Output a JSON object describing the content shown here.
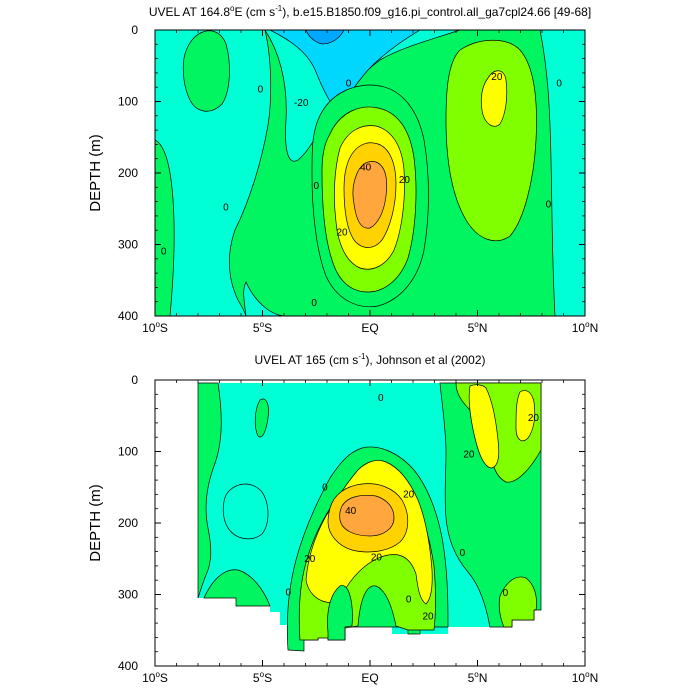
{
  "chart_data": [
    {
      "type": "contour",
      "title": "UVEL AT 164.8°E (cm s⁻¹), b.e15.B1850.f09_g16.pi_control.all_ga7cpl24.66 [49-68]",
      "title_parts": {
        "pre": "UVEL AT 164.8",
        "deg": "o",
        "mid": "E (cm s",
        "sup": "-1",
        "post": "), b.e15.B1850.f09_g16.pi_control.all_ga7cpl24.66 [49-68]"
      },
      "ylabel": "DEPTH (m)",
      "xlim": [
        -10,
        10
      ],
      "ylim": [
        0,
        400
      ],
      "y_inverted": true,
      "xticks": [
        {
          "value": -10,
          "label": "10",
          "deg": "o",
          "suffix": "S"
        },
        {
          "value": -5,
          "label": "5",
          "deg": "o",
          "suffix": "S"
        },
        {
          "value": 0,
          "label": "EQ",
          "deg": "",
          "suffix": ""
        },
        {
          "value": 5,
          "label": "5",
          "deg": "o",
          "suffix": "N"
        },
        {
          "value": 10,
          "label": "10",
          "deg": "o",
          "suffix": "N"
        }
      ],
      "yticks": [
        {
          "value": 0,
          "label": "0"
        },
        {
          "value": 100,
          "label": "100"
        },
        {
          "value": 200,
          "label": "200"
        },
        {
          "value": 300,
          "label": "300"
        },
        {
          "value": 400,
          "label": "400"
        }
      ],
      "contour_levels": [
        -30,
        -20,
        -10,
        0,
        10,
        20,
        30,
        40
      ],
      "contour_labels": [
        {
          "x": -5.1,
          "y": 83,
          "text": "0"
        },
        {
          "x": -3.2,
          "y": 102,
          "text": "-20"
        },
        {
          "x": -6.7,
          "y": 248,
          "text": "0"
        },
        {
          "x": -9.6,
          "y": 310,
          "text": "0"
        },
        {
          "x": -2.5,
          "y": 218,
          "text": "0"
        },
        {
          "x": -1.0,
          "y": 75,
          "text": "0"
        },
        {
          "x": -0.2,
          "y": 192,
          "text": "40"
        },
        {
          "x": 1.6,
          "y": 210,
          "text": "20"
        },
        {
          "x": -1.3,
          "y": 283,
          "text": "20"
        },
        {
          "x": 5.9,
          "y": 66,
          "text": "20"
        },
        {
          "x": 8.8,
          "y": 75,
          "text": "0"
        },
        {
          "x": 8.3,
          "y": 244,
          "text": "0"
        },
        {
          "x": -2.6,
          "y": 382,
          "text": "0"
        }
      ]
    },
    {
      "type": "contour",
      "title": "UVEL AT 165 (cm s⁻¹), Johnson et al (2002)",
      "title_parts": {
        "pre": "UVEL AT 165 (cm s",
        "sup": "-1",
        "post": "), Johnson et al (2002)"
      },
      "ylabel": "DEPTH (m)",
      "xlim": [
        -10,
        10
      ],
      "ylim": [
        0,
        400
      ],
      "y_inverted": true,
      "xticks": [
        {
          "value": -10,
          "label": "10",
          "deg": "o",
          "suffix": "S"
        },
        {
          "value": -5,
          "label": "5",
          "deg": "o",
          "suffix": "S"
        },
        {
          "value": 0,
          "label": "EQ",
          "deg": "",
          "suffix": ""
        },
        {
          "value": 5,
          "label": "5",
          "deg": "o",
          "suffix": "N"
        },
        {
          "value": 10,
          "label": "10",
          "deg": "o",
          "suffix": "N"
        }
      ],
      "yticks": [
        {
          "value": 0,
          "label": "0"
        },
        {
          "value": 100,
          "label": "100"
        },
        {
          "value": 200,
          "label": "200"
        },
        {
          "value": 300,
          "label": "300"
        },
        {
          "value": 400,
          "label": "400"
        }
      ],
      "contour_levels": [
        -30,
        -20,
        -10,
        0,
        10,
        20,
        30,
        40
      ],
      "contour_labels": [
        {
          "x": -0.9,
          "y": 183,
          "text": "40"
        },
        {
          "x": 1.8,
          "y": 160,
          "text": "20"
        },
        {
          "x": -2.8,
          "y": 250,
          "text": "20"
        },
        {
          "x": 0.3,
          "y": 248,
          "text": "20"
        },
        {
          "x": 0.5,
          "y": 25,
          "text": "0"
        },
        {
          "x": 4.6,
          "y": 104,
          "text": "20"
        },
        {
          "x": 7.6,
          "y": 53,
          "text": "20"
        },
        {
          "x": 6.3,
          "y": 298,
          "text": "0"
        },
        {
          "x": 4.3,
          "y": 242,
          "text": "0"
        },
        {
          "x": -2.1,
          "y": 150,
          "text": "0"
        },
        {
          "x": 2.7,
          "y": 331,
          "text": "20"
        },
        {
          "x": 1.8,
          "y": 307,
          "text": "0"
        },
        {
          "x": -3.8,
          "y": 297,
          "text": "0"
        }
      ]
    }
  ]
}
